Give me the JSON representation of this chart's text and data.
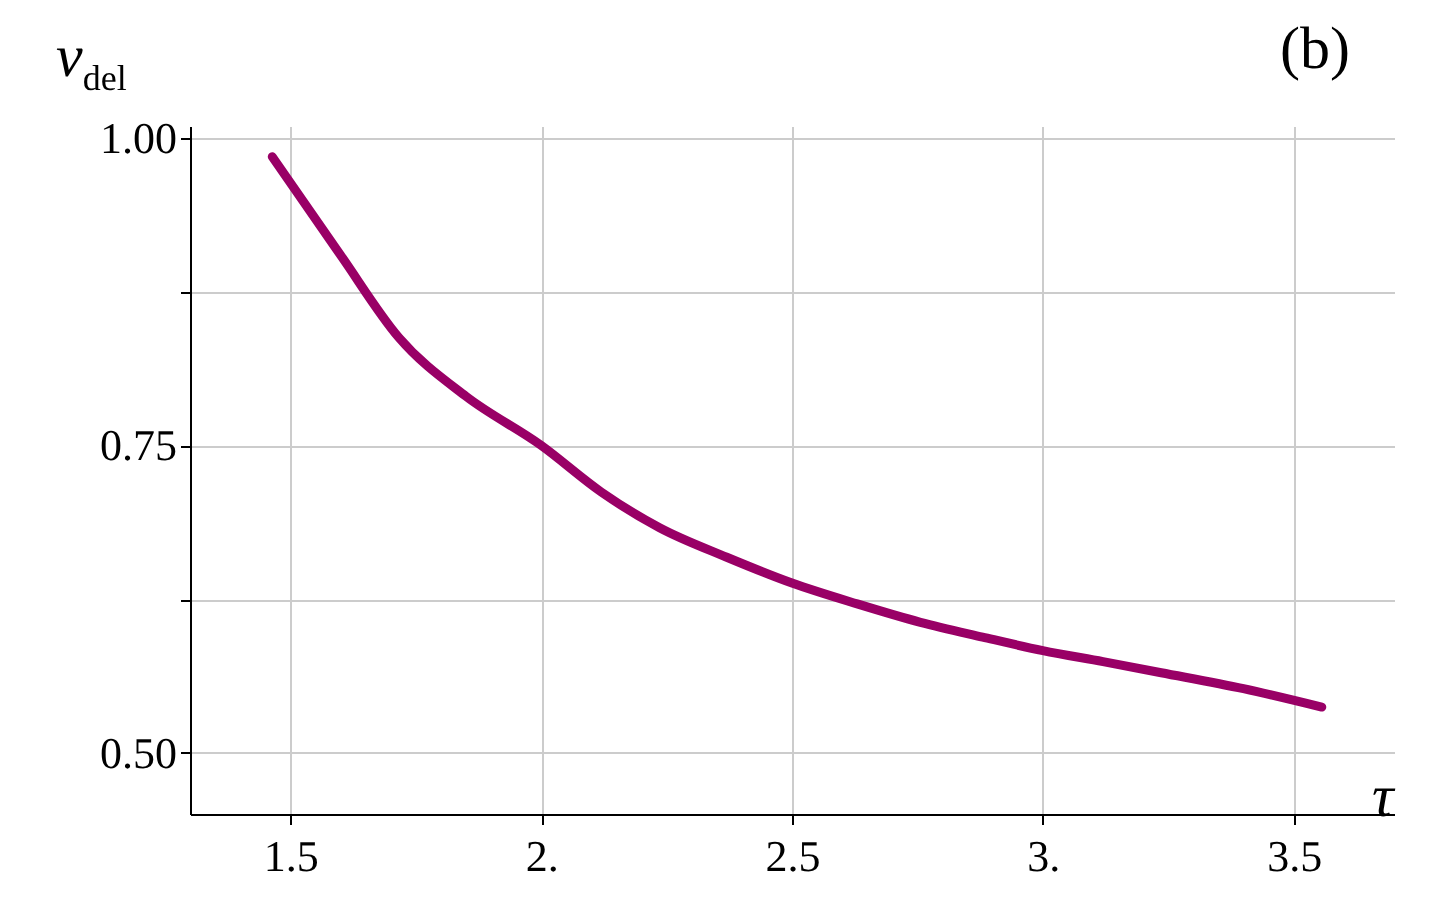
{
  "chart_data": {
    "type": "line",
    "xlabel": "τ",
    "ylabel": "ν$_{del}$",
    "annotations": [
      "(b)"
    ],
    "x": [
      1.464,
      1.6,
      1.716,
      1.85,
      2,
      2.12,
      2.236,
      2.37,
      2.5,
      2.63,
      2.756,
      2.88,
      3,
      3.12,
      3.236,
      3.4,
      3.556
    ],
    "series": [
      {
        "color": "#990066",
        "values": [
          0.985,
          0.905,
          0.838,
          0.79,
          0.75,
          0.712,
          0.683,
          0.659,
          0.638,
          0.621,
          0.606,
          0.594,
          0.583,
          0.574,
          0.565,
          0.552,
          0.537
        ]
      }
    ],
    "xlim": [
      1.3,
      3.7
    ],
    "ylim": [
      0.45,
      1.01
    ],
    "xticks": [
      1.5,
      {
        "value": 2,
        "label": "2."
      },
      2.5,
      {
        "value": 3,
        "label": "3."
      },
      3.5
    ],
    "yticks": [
      {
        "value": 0.5,
        "label": "0.50"
      },
      {
        "value": 0.625,
        "label": null
      },
      {
        "value": 0.75,
        "label": "0.75"
      },
      {
        "value": 0.875,
        "label": null
      },
      {
        "value": 1,
        "label": "1.00"
      }
    ],
    "grid": true,
    "line_style": "solid",
    "marker": "none"
  }
}
